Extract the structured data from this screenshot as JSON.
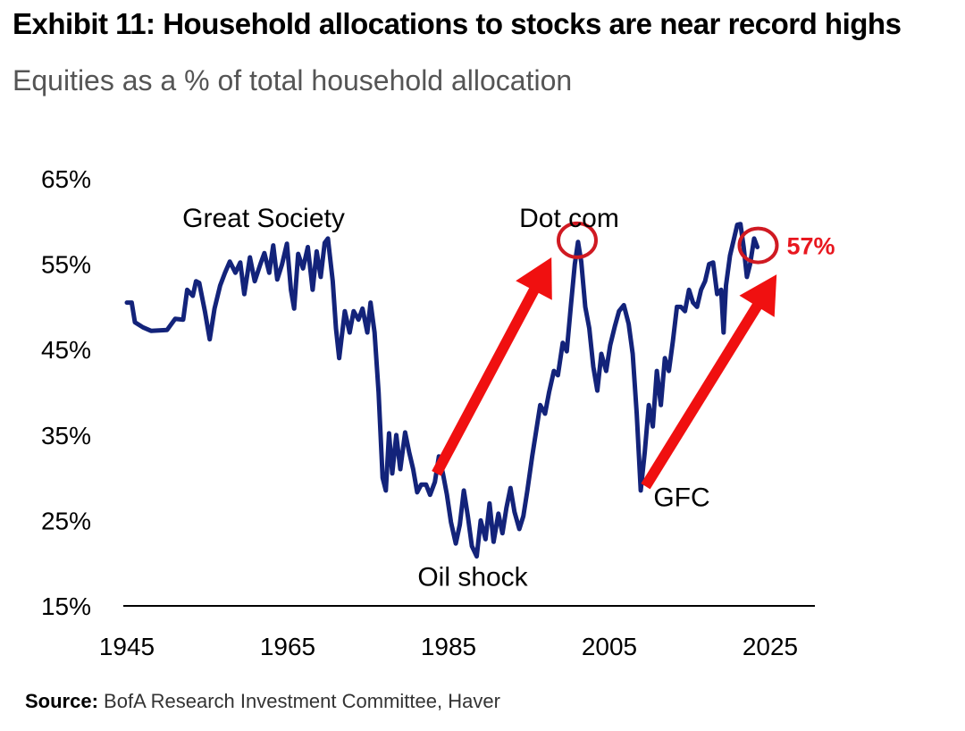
{
  "header": {
    "title": "Exhibit 11: Household allocations to stocks are near record highs",
    "subtitle": "Equities as a % of total household allocation"
  },
  "footer": {
    "source_label": "Source:",
    "source_text": "BofA Research Investment Committee, Haver"
  },
  "colors": {
    "line": "#13237a",
    "accent": "#f01010",
    "accent_text": "#e8171f"
  },
  "chart_data": {
    "type": "line",
    "title": "Exhibit 11: Household allocations to stocks are near record highs",
    "subtitle": "Equities as a % of total household allocation",
    "xlabel": "",
    "ylabel": "",
    "xlim": [
      1945,
      2025
    ],
    "ylim": [
      15,
      65
    ],
    "x_ticks": [
      1945,
      1965,
      1985,
      2005,
      2025
    ],
    "y_ticks": [
      15,
      25,
      35,
      45,
      55,
      65
    ],
    "y_tick_labels": [
      "15%",
      "25%",
      "35%",
      "45%",
      "55%",
      "65%"
    ],
    "grid": false,
    "series": [
      {
        "values": [
          [
            1945.0,
            50.5
          ],
          [
            1945.6,
            50.5
          ],
          [
            1946.0,
            48.2
          ],
          [
            1947.0,
            47.6
          ],
          [
            1948.0,
            47.2
          ],
          [
            1950.0,
            47.3
          ],
          [
            1951.0,
            48.6
          ],
          [
            1952.0,
            48.5
          ],
          [
            1952.5,
            52.0
          ],
          [
            1953.2,
            51.3
          ],
          [
            1953.6,
            53.0
          ],
          [
            1954.0,
            52.8
          ],
          [
            1954.7,
            49.5
          ],
          [
            1955.3,
            46.2
          ],
          [
            1955.9,
            49.8
          ],
          [
            1956.6,
            52.5
          ],
          [
            1957.2,
            54.0
          ],
          [
            1957.8,
            55.3
          ],
          [
            1958.5,
            54.0
          ],
          [
            1959.1,
            55.2
          ],
          [
            1959.6,
            51.5
          ],
          [
            1960.3,
            55.8
          ],
          [
            1960.9,
            53.0
          ],
          [
            1961.6,
            55.0
          ],
          [
            1962.1,
            56.3
          ],
          [
            1962.7,
            54.0
          ],
          [
            1963.2,
            57.2
          ],
          [
            1963.7,
            53.2
          ],
          [
            1964.3,
            55.0
          ],
          [
            1964.9,
            57.4
          ],
          [
            1965.4,
            52.0
          ],
          [
            1965.8,
            49.8
          ],
          [
            1966.3,
            56.2
          ],
          [
            1966.9,
            54.5
          ],
          [
            1967.5,
            57.0
          ],
          [
            1968.1,
            52.0
          ],
          [
            1968.6,
            56.5
          ],
          [
            1969.1,
            53.5
          ],
          [
            1969.6,
            57.5
          ],
          [
            1970.0,
            58.0
          ],
          [
            1970.6,
            53.0
          ],
          [
            1971.0,
            47.5
          ],
          [
            1971.4,
            44.0
          ],
          [
            1972.1,
            49.5
          ],
          [
            1972.7,
            47.0
          ],
          [
            1973.2,
            49.5
          ],
          [
            1973.8,
            48.5
          ],
          [
            1974.3,
            49.8
          ],
          [
            1974.9,
            47.0
          ],
          [
            1975.3,
            50.5
          ],
          [
            1975.8,
            47.0
          ],
          [
            1976.3,
            40.0
          ],
          [
            1976.8,
            30.0
          ],
          [
            1977.2,
            28.5
          ],
          [
            1977.6,
            35.2
          ],
          [
            1978.0,
            30.5
          ],
          [
            1978.5,
            35.0
          ],
          [
            1979.0,
            31.0
          ],
          [
            1979.6,
            35.3
          ],
          [
            1980.1,
            33.0
          ],
          [
            1980.6,
            31.0
          ],
          [
            1981.1,
            28.3
          ],
          [
            1981.6,
            29.2
          ],
          [
            1982.2,
            29.2
          ],
          [
            1982.7,
            28.0
          ],
          [
            1983.3,
            29.5
          ],
          [
            1983.8,
            32.5
          ],
          [
            1984.3,
            30.5
          ],
          [
            1984.8,
            28.0
          ],
          [
            1985.3,
            24.8
          ],
          [
            1985.9,
            22.3
          ],
          [
            1986.4,
            24.5
          ],
          [
            1986.9,
            28.5
          ],
          [
            1987.4,
            25.5
          ],
          [
            1987.9,
            22.0
          ],
          [
            1988.5,
            20.8
          ],
          [
            1989.0,
            25.0
          ],
          [
            1989.6,
            22.8
          ],
          [
            1990.1,
            27.0
          ],
          [
            1990.6,
            22.5
          ],
          [
            1991.2,
            25.8
          ],
          [
            1991.7,
            23.5
          ],
          [
            1992.2,
            26.5
          ],
          [
            1992.7,
            28.8
          ],
          [
            1993.2,
            26.0
          ],
          [
            1993.8,
            24.0
          ],
          [
            1994.3,
            25.5
          ],
          [
            1994.8,
            28.5
          ],
          [
            1995.4,
            32.5
          ],
          [
            1995.9,
            35.5
          ],
          [
            1996.4,
            38.5
          ],
          [
            1997.0,
            37.5
          ],
          [
            1997.5,
            40.0
          ],
          [
            1998.1,
            42.5
          ],
          [
            1998.6,
            42.0
          ],
          [
            1999.2,
            45.8
          ],
          [
            1999.7,
            44.8
          ],
          [
            2000.2,
            50.0
          ],
          [
            2000.7,
            55.0
          ],
          [
            2001.1,
            57.6
          ],
          [
            2001.5,
            55.3
          ],
          [
            2002.0,
            50.0
          ],
          [
            2002.5,
            47.5
          ],
          [
            2003.0,
            43.0
          ],
          [
            2003.5,
            40.2
          ],
          [
            2004.0,
            44.5
          ],
          [
            2004.6,
            42.5
          ],
          [
            2005.1,
            45.5
          ],
          [
            2005.7,
            47.8
          ],
          [
            2006.2,
            49.5
          ],
          [
            2006.8,
            50.2
          ],
          [
            2007.4,
            48.0
          ],
          [
            2007.9,
            44.5
          ],
          [
            2008.4,
            37.5
          ],
          [
            2008.9,
            28.5
          ],
          [
            2009.4,
            33.0
          ],
          [
            2009.9,
            38.5
          ],
          [
            2010.4,
            36.0
          ],
          [
            2010.9,
            42.5
          ],
          [
            2011.4,
            38.5
          ],
          [
            2011.9,
            44.0
          ],
          [
            2012.4,
            42.5
          ],
          [
            2012.9,
            46.0
          ],
          [
            2013.4,
            50.0
          ],
          [
            2013.9,
            50.0
          ],
          [
            2014.4,
            49.5
          ],
          [
            2014.9,
            52.0
          ],
          [
            2015.4,
            50.5
          ],
          [
            2015.9,
            50.0
          ],
          [
            2016.4,
            52.0
          ],
          [
            2016.9,
            53.0
          ],
          [
            2017.4,
            55.0
          ],
          [
            2017.9,
            55.2
          ],
          [
            2018.4,
            51.5
          ],
          [
            2018.9,
            52.0
          ],
          [
            2019.2,
            47.0
          ],
          [
            2019.5,
            52.5
          ],
          [
            2020.0,
            56.0
          ],
          [
            2020.5,
            58.0
          ],
          [
            2020.9,
            59.6
          ],
          [
            2021.3,
            59.7
          ],
          [
            2021.7,
            57.0
          ],
          [
            2022.1,
            53.5
          ],
          [
            2022.5,
            55.0
          ],
          [
            2023.0,
            58.0
          ],
          [
            2023.4,
            57.0
          ]
        ]
      }
    ],
    "annotations": [
      {
        "text": "Great Society",
        "x": 1962,
        "y": 60.5
      },
      {
        "text": "Dot com",
        "x": 2000,
        "y": 60.5
      },
      {
        "text": "Oil shock",
        "x": 1988,
        "y": 18.5
      },
      {
        "text": "GFC",
        "x": 2014,
        "y": 27.8
      }
    ],
    "highlight_circles": [
      {
        "x": 2001.0,
        "y": 57.8
      },
      {
        "x": 2023.5,
        "y": 57.2
      }
    ],
    "highlight_arrows": [
      {
        "from": [
          1983.5,
          30.5
        ],
        "to": [
          1997.8,
          55.8
        ]
      },
      {
        "from": [
          2009.5,
          29.0
        ],
        "to": [
          2025.8,
          53.8
        ]
      }
    ],
    "callout": {
      "text": "57%"
    }
  }
}
